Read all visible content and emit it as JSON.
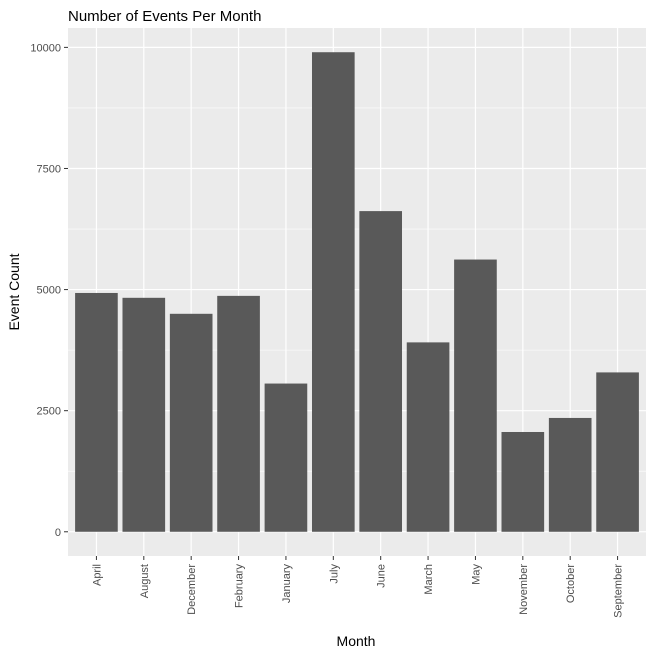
{
  "colors": {
    "panel_background": "#ebebeb",
    "grid_major": "#ffffff",
    "bar_fill": "#595959",
    "tick_color": "#333333",
    "tick_label_color": "#4d4d4d"
  },
  "chart_data": {
    "type": "bar",
    "title": "Number of Events Per Month",
    "xlabel": "Month",
    "ylabel": "Event Count",
    "ylim": [
      -500,
      10400
    ],
    "yticks": [
      0,
      2500,
      5000,
      7500,
      10000
    ],
    "ytick_labels": [
      "0",
      "2500",
      "5000",
      "7500",
      "10000"
    ],
    "grid": true,
    "legend": "none",
    "categories": [
      "April",
      "August",
      "December",
      "February",
      "January",
      "July",
      "June",
      "March",
      "May",
      "November",
      "October",
      "September"
    ],
    "values": [
      4930,
      4830,
      4500,
      4870,
      3060,
      9900,
      6620,
      3910,
      5620,
      2060,
      2350,
      3290
    ]
  }
}
